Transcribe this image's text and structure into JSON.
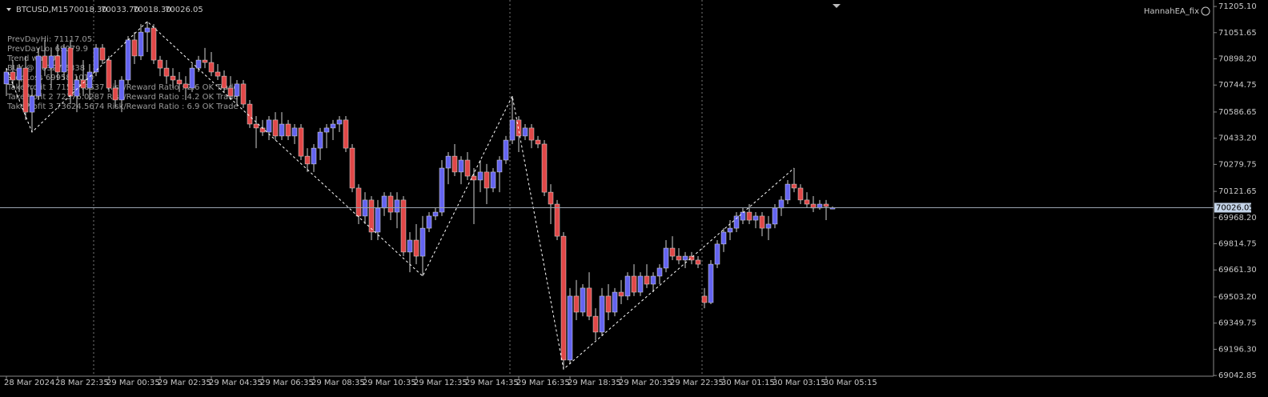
{
  "chart_data": {
    "type": "candlestick",
    "title": "BTCUSD,M15",
    "header_values": [
      "70018.30",
      "70033.70",
      "70018.30",
      "70026.05"
    ],
    "watermark": "HannahEA_fix",
    "info_lines": [
      "PrevDayHi: 71117.05",
      "PrevDayLo: 69079.9",
      "Trend was UP",
      "BUY @ 70327.5838",
      "StopLoss 69958.1013",
      "TakeProfit 1 71597.6537 Risk/Reward Ratio : 2.6 OK Trade",
      "TakeProfit 2 72376.0287 Risk/Reward Ratio : 4.2 OK Trade",
      "TakeProfit 3 73624.5674 Risk/Reward Ratio : 6.9 OK Trade"
    ],
    "categories": [
      "28 Mar 2024",
      null,
      null,
      null,
      null,
      null,
      null,
      null,
      "28 Mar 22:35",
      null,
      null,
      null,
      null,
      null,
      null,
      null,
      "29 Mar 00:35",
      null,
      null,
      null,
      null,
      null,
      null,
      null,
      "29 Mar 02:35",
      null,
      null,
      null,
      null,
      null,
      null,
      null,
      "29 Mar 04:35",
      null,
      null,
      null,
      null,
      null,
      null,
      null,
      "29 Mar 06:35",
      null,
      null,
      null,
      null,
      null,
      null,
      null,
      "29 Mar 08:35",
      null,
      null,
      null,
      null,
      null,
      null,
      null,
      "29 Mar 10:35",
      null,
      null,
      null,
      null,
      null,
      null,
      null,
      "29 Mar 12:35",
      null,
      null,
      null,
      null,
      null,
      null,
      null,
      "29 Mar 14:35",
      null,
      null,
      null,
      null,
      null,
      null,
      null,
      "29 Mar 16:35",
      null,
      null,
      null,
      null,
      null,
      null,
      null,
      "29 Mar 18:35",
      null,
      null,
      null,
      null,
      null,
      null,
      null,
      "29 Mar 20:35",
      null,
      null,
      null,
      null,
      null,
      null,
      null,
      "29 Mar 22:35",
      null,
      null,
      null,
      null,
      null,
      null,
      null,
      "30 Mar 01:15",
      null,
      null,
      null,
      null,
      null,
      null,
      null,
      "30 Mar 03:15",
      null,
      null,
      null,
      null,
      null,
      null,
      null,
      "30 Mar 05:15",
      null
    ],
    "open": [
      70751,
      70821,
      70774,
      70844,
      70586,
      70680,
      70915,
      70844,
      70915,
      70821,
      70962,
      70680,
      70774,
      70727,
      70821,
      70962,
      70891,
      70727,
      70657,
      70774,
      71009,
      70915,
      71055,
      71079,
      70891,
      70844,
      70797,
      70774,
      70751,
      70727,
      70844,
      70891,
      70877,
      70821,
      70797,
      70727,
      70680,
      70751,
      70633,
      70516,
      70493,
      70469,
      70540,
      70446,
      70516,
      70446,
      70493,
      70328,
      70282,
      70375,
      70469,
      70493,
      70516,
      70540,
      70375,
      70141,
      69977,
      70071,
      69883,
      70024,
      70094,
      70000,
      70071,
      69766,
      69836,
      69742,
      69906,
      69977,
      70000,
      70258,
      70328,
      70235,
      70305,
      70211,
      70188,
      70235,
      70141,
      70235,
      70305,
      70422,
      70540,
      70446,
      70493,
      70422,
      70399,
      70117,
      70047,
      69859,
      69133,
      69508,
      69414,
      69555,
      69390,
      69297,
      69508,
      69414,
      69531,
      69508,
      69625,
      69531,
      69625,
      69578,
      69625,
      69672,
      69789,
      69742,
      69719,
      69742,
      69719,
      69508,
      69470,
      69695,
      69813,
      69883,
      69906,
      69953,
      70000,
      69953,
      69977,
      69906,
      69930,
      70024,
      70071,
      70164,
      70141,
      70071,
      70047,
      70024,
      70047,
      70018.3
    ],
    "high": [
      70844,
      70891,
      70868,
      70915,
      70727,
      70962,
      71009,
      70962,
      70985,
      70985,
      71009,
      70797,
      70891,
      70868,
      70985,
      70985,
      70915,
      70774,
      70797,
      71032,
      71055,
      71102,
      71117,
      71102,
      70915,
      70891,
      70844,
      70821,
      70797,
      70868,
      70915,
      70962,
      70938,
      70868,
      70830,
      70797,
      70774,
      70774,
      70657,
      70563,
      70540,
      70563,
      70586,
      70586,
      70540,
      70516,
      70516,
      70375,
      70399,
      70493,
      70516,
      70540,
      70563,
      70563,
      70399,
      70164,
      70117,
      70094,
      70071,
      70117,
      70117,
      70117,
      70094,
      69883,
      69930,
      69977,
      70000,
      70024,
      70305,
      70352,
      70399,
      70328,
      70352,
      70258,
      70305,
      70282,
      70258,
      70328,
      70446,
      70680,
      70563,
      70516,
      70516,
      70446,
      70422,
      70164,
      70071,
      69883,
      69555,
      69602,
      69578,
      69648,
      69437,
      69555,
      69578,
      69555,
      69602,
      69648,
      69695,
      69648,
      69695,
      69648,
      69695,
      69836,
      69859,
      69789,
      69766,
      69766,
      69742,
      69555,
      69719,
      69836,
      69906,
      69953,
      70000,
      70024,
      70047,
      70000,
      70000,
      69977,
      70047,
      70094,
      70188,
      70258,
      70164,
      70117,
      70094,
      70071,
      70071,
      70033.7
    ],
    "low": [
      70680,
      70727,
      70704,
      70540,
      70469,
      70657,
      70797,
      70727,
      70774,
      70774,
      70633,
      70586,
      70680,
      70657,
      70797,
      70868,
      70704,
      70610,
      70586,
      70751,
      70868,
      70891,
      70938,
      70868,
      70797,
      70751,
      70727,
      70704,
      70657,
      70704,
      70821,
      70844,
      70797,
      70774,
      70704,
      70657,
      70633,
      70610,
      70493,
      70375,
      70446,
      70422,
      70422,
      70422,
      70422,
      70399,
      70305,
      70235,
      70235,
      70305,
      70375,
      70422,
      70469,
      70352,
      70117,
      69930,
      69930,
      69836,
      69836,
      69977,
      69953,
      69906,
      69742,
      69648,
      69695,
      69625,
      69883,
      69953,
      69977,
      70164,
      70211,
      70164,
      70188,
      69930,
      70117,
      70047,
      70117,
      70117,
      70282,
      70399,
      70352,
      70422,
      70375,
      70375,
      70094,
      69930,
      69836,
      69080,
      69109,
      69367,
      69390,
      69367,
      69250,
      69273,
      69367,
      69390,
      69461,
      69484,
      69508,
      69508,
      69555,
      69531,
      69578,
      69648,
      69719,
      69695,
      69672,
      69695,
      69672,
      69437,
      69461,
      69672,
      69766,
      69836,
      69883,
      69930,
      69930,
      69906,
      69859,
      69836,
      69906,
      69977,
      70047,
      70117,
      70047,
      70024,
      70000,
      70014,
      69953,
      70018.3
    ],
    "close": [
      70821,
      70774,
      70844,
      70586,
      70680,
      70915,
      70844,
      70915,
      70821,
      70962,
      70680,
      70774,
      70727,
      70821,
      70962,
      70891,
      70727,
      70657,
      70774,
      71009,
      70915,
      71055,
      71079,
      70891,
      70844,
      70797,
      70774,
      70751,
      70727,
      70844,
      70891,
      70877,
      70821,
      70797,
      70727,
      70680,
      70751,
      70633,
      70516,
      70493,
      70469,
      70540,
      70446,
      70516,
      70446,
      70493,
      70328,
      70282,
      70375,
      70469,
      70493,
      70516,
      70540,
      70375,
      70141,
      69977,
      70071,
      69883,
      70024,
      70094,
      70000,
      70071,
      69766,
      69836,
      69742,
      69906,
      69977,
      70000,
      70258,
      70328,
      70235,
      70305,
      70211,
      70188,
      70235,
      70141,
      70235,
      70305,
      70422,
      70540,
      70446,
      70493,
      70422,
      70399,
      70117,
      70047,
      69859,
      69133,
      69508,
      69414,
      69555,
      69390,
      69297,
      69508,
      69414,
      69531,
      69508,
      69625,
      69531,
      69625,
      69578,
      69625,
      69672,
      69789,
      69742,
      69719,
      69742,
      69719,
      69695,
      69470,
      69695,
      69813,
      69883,
      69906,
      69977,
      70000,
      69953,
      69977,
      69906,
      69930,
      70024,
      70071,
      70164,
      70141,
      70071,
      70047,
      70024,
      70047,
      70033,
      70026.05
    ],
    "up_color": "#6464f0",
    "down_color": "#e04848",
    "ylim": [
      69038.7,
      71243
    ],
    "yticks": [
      {
        "value": 71205.1,
        "label": "71205.10"
      },
      71051.65,
      {
        "value": 70898.2,
        "label": "70898.20"
      },
      70744.75,
      70586.65,
      {
        "value": 70433.2,
        "label": "70433.20"
      },
      70279.75,
      70121.65,
      {
        "value": 69968.2,
        "label": "69968.20"
      },
      69814.75,
      {
        "value": 69661.3,
        "label": "69661.30"
      },
      {
        "value": 69503.2,
        "label": "69503.20"
      },
      69349.75,
      {
        "value": 69196.3,
        "label": "69196.30"
      },
      69042.85
    ],
    "grid": false
  }
}
